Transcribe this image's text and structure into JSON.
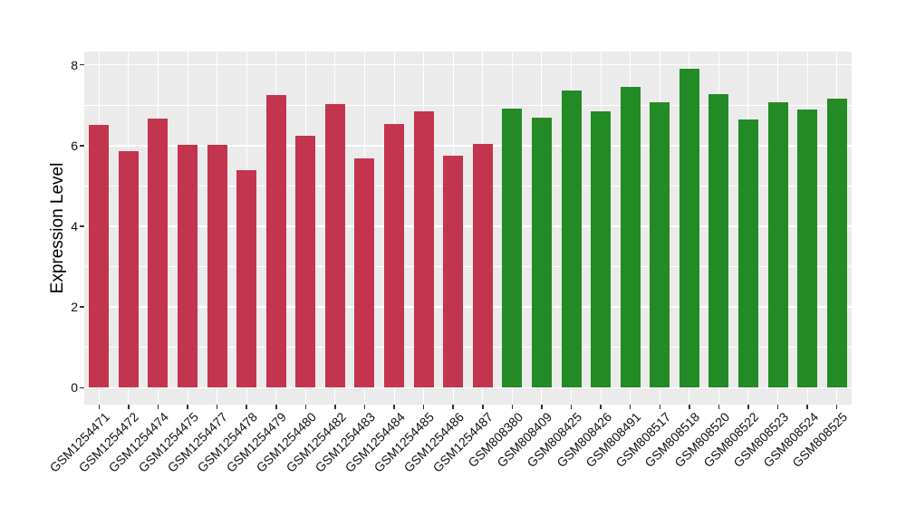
{
  "chart_data": {
    "type": "bar",
    "title": "",
    "xlabel": "",
    "ylabel": "Expression Level",
    "categories": [
      "GSM1254471",
      "GSM1254472",
      "GSM1254474",
      "GSM1254475",
      "GSM1254477",
      "GSM1254478",
      "GSM1254479",
      "GSM1254480",
      "GSM1254482",
      "GSM1254483",
      "GSM1254484",
      "GSM1254485",
      "GSM1254486",
      "GSM1254487",
      "GSM808380",
      "GSM808409",
      "GSM808425",
      "GSM808426",
      "GSM808491",
      "GSM808517",
      "GSM808518",
      "GSM808520",
      "GSM808522",
      "GSM808523",
      "GSM808524",
      "GSM808525"
    ],
    "values": [
      6.52,
      5.87,
      6.67,
      6.02,
      6.02,
      5.38,
      7.26,
      6.24,
      7.03,
      5.69,
      6.53,
      6.85,
      5.76,
      6.05,
      6.92,
      6.69,
      7.36,
      6.85,
      7.46,
      7.07,
      7.91,
      7.28,
      6.64,
      7.07,
      6.9,
      7.17
    ],
    "bar_colors": [
      "#C3344F",
      "#C3344F",
      "#C3344F",
      "#C3344F",
      "#C3344F",
      "#C3344F",
      "#C3344F",
      "#C3344F",
      "#C3344F",
      "#C3344F",
      "#C3344F",
      "#C3344F",
      "#C3344F",
      "#C3344F",
      "#228B26",
      "#228B26",
      "#228B26",
      "#228B26",
      "#228B26",
      "#228B26",
      "#228B26",
      "#228B26",
      "#228B26",
      "#228B26",
      "#228B26",
      "#228B26"
    ],
    "groups": [
      {
        "name": "GSM1254471-GSM1254487",
        "color": "#C3344F",
        "count": 14
      },
      {
        "name": "GSM808380-GSM808525",
        "color": "#228B26",
        "count": 12
      }
    ],
    "ylim": [
      -0.42,
      8.33
    ],
    "yticks": [
      0,
      2,
      4,
      6,
      8
    ],
    "yticks_minor": [
      1,
      3,
      5,
      7
    ],
    "grid": true,
    "legend": "none",
    "panel_bg": "#EBEBEB",
    "grid_color": "#FFFFFF",
    "tick_color": "#333333",
    "axis_text_color": "#111111"
  }
}
